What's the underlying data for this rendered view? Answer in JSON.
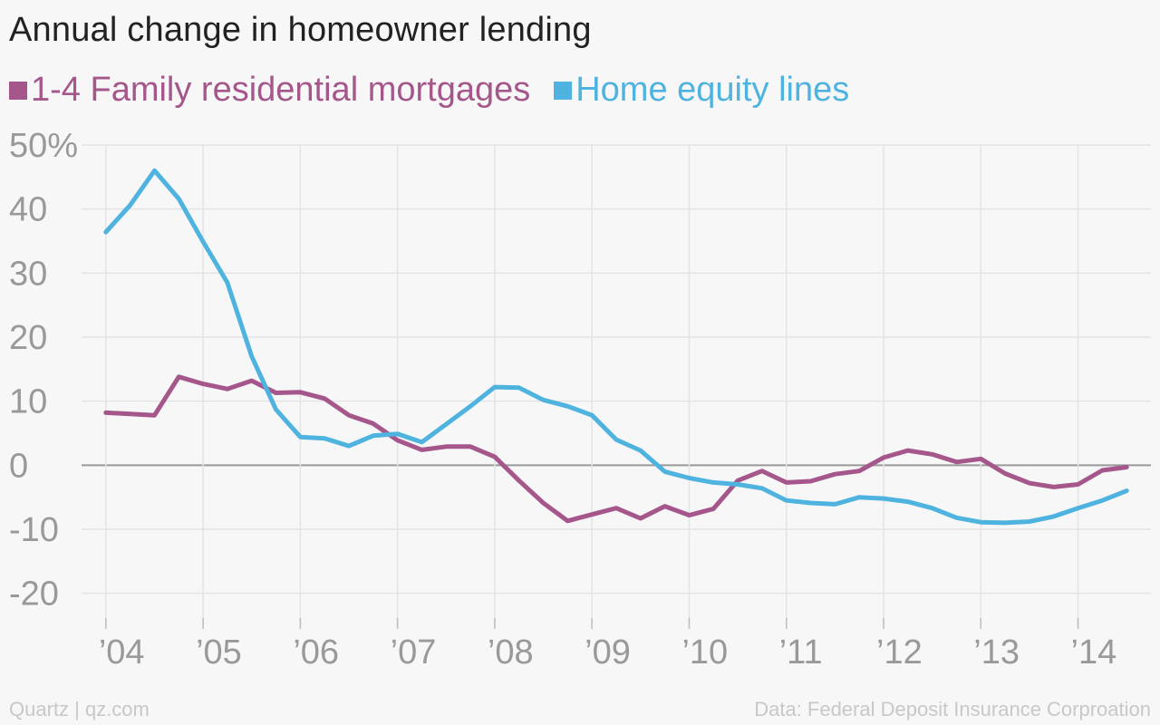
{
  "chart_data": {
    "type": "line",
    "title": "Annual change in homeowner lending",
    "xlabel": "",
    "ylabel": "",
    "ylim": [
      -25,
      50
    ],
    "xlim": [
      2003.75,
      2014.75
    ],
    "grid": true,
    "legend_position": "top-left",
    "y_ticks": [
      {
        "value": 50,
        "label": "50%"
      },
      {
        "value": 40,
        "label": "40"
      },
      {
        "value": 30,
        "label": "30"
      },
      {
        "value": 20,
        "label": "20"
      },
      {
        "value": 10,
        "label": "10"
      },
      {
        "value": 0,
        "label": "0"
      },
      {
        "value": -10,
        "label": "-10"
      },
      {
        "value": -20,
        "label": "-20"
      }
    ],
    "x_ticks": [
      {
        "value": 2004,
        "label": "’04"
      },
      {
        "value": 2005,
        "label": "’05"
      },
      {
        "value": 2006,
        "label": "’06"
      },
      {
        "value": 2007,
        "label": "’07"
      },
      {
        "value": 2008,
        "label": "’08"
      },
      {
        "value": 2009,
        "label": "’09"
      },
      {
        "value": 2010,
        "label": "’10"
      },
      {
        "value": 2011,
        "label": "’11"
      },
      {
        "value": 2012,
        "label": "’12"
      },
      {
        "value": 2013,
        "label": "’13"
      },
      {
        "value": 2014,
        "label": "’14"
      }
    ],
    "x": [
      2004.0,
      2004.25,
      2004.5,
      2004.75,
      2005.0,
      2005.25,
      2005.5,
      2005.75,
      2006.0,
      2006.25,
      2006.5,
      2006.75,
      2007.0,
      2007.25,
      2007.5,
      2007.75,
      2008.0,
      2008.25,
      2008.5,
      2008.75,
      2009.0,
      2009.25,
      2009.5,
      2009.75,
      2010.0,
      2010.25,
      2010.5,
      2010.75,
      2011.0,
      2011.25,
      2011.5,
      2011.75,
      2012.0,
      2012.25,
      2012.5,
      2012.75,
      2013.0,
      2013.25,
      2013.5,
      2013.75,
      2014.0,
      2014.25,
      2014.5
    ],
    "series": [
      {
        "name": "1-4 Family residential mortgages",
        "color": "#a5578b",
        "values": [
          8.2,
          8.0,
          7.8,
          13.8,
          12.7,
          11.9,
          13.2,
          11.3,
          11.4,
          10.4,
          7.8,
          6.5,
          3.9,
          2.4,
          2.9,
          2.9,
          1.3,
          -2.4,
          -5.9,
          -8.7,
          -7.7,
          -6.7,
          -8.3,
          -6.4,
          -7.8,
          -6.8,
          -2.4,
          -0.9,
          -2.7,
          -2.5,
          -1.4,
          -0.9,
          1.2,
          2.3,
          1.7,
          0.5,
          1.0,
          -1.3,
          -2.8,
          -3.4,
          -3.0,
          -0.8,
          -0.3
        ]
      },
      {
        "name": "Home equity lines",
        "color": "#4fb3e0",
        "values": [
          36.4,
          40.6,
          46.0,
          41.6,
          34.9,
          28.5,
          17.0,
          8.7,
          4.4,
          4.2,
          3.0,
          4.6,
          4.9,
          3.6,
          6.4,
          9.2,
          12.2,
          12.1,
          10.2,
          9.2,
          7.8,
          4.0,
          2.3,
          -1.0,
          -2.0,
          -2.7,
          -3.0,
          -3.6,
          -5.5,
          -5.9,
          -6.1,
          -5.0,
          -5.2,
          -5.7,
          -6.7,
          -8.2,
          -8.9,
          -9.0,
          -8.8,
          -8.0,
          -6.7,
          -5.5,
          -4.0
        ]
      }
    ]
  },
  "footer": {
    "left": "Quartz | qz.com",
    "right": "Data: Federal Deposit Insurance Corproation"
  }
}
